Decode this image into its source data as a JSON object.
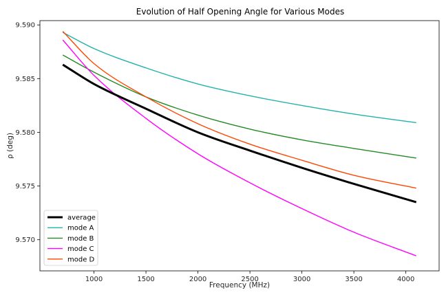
{
  "chart_data": {
    "type": "line",
    "title": "Evolution of Half Opening Angle for Various Modes",
    "xlabel": "Frequency (MHz)",
    "ylabel": "ρ (deg)",
    "xlim": [
      480,
      4320
    ],
    "ylim": [
      9.5671,
      9.5904
    ],
    "xticks": [
      1000,
      1500,
      2000,
      2500,
      3000,
      3500,
      4000
    ],
    "xtick_labels": [
      "1000",
      "1500",
      "2000",
      "2500",
      "3000",
      "3500",
      "4000"
    ],
    "yticks": [
      9.57,
      9.575,
      9.58,
      9.585,
      9.59
    ],
    "ytick_labels": [
      "9.570",
      "9.575",
      "9.580",
      "9.585",
      "9.590"
    ],
    "grid": false,
    "legend_position": "lower-left",
    "x": [
      700,
      1000,
      1500,
      2000,
      2500,
      3000,
      3500,
      4100
    ],
    "series": [
      {
        "name": "average",
        "color": "#000000",
        "width": 3,
        "values": [
          9.5863,
          9.5845,
          9.5822,
          9.58,
          9.5783,
          9.5767,
          9.5752,
          9.5735
        ]
      },
      {
        "name": "mode A",
        "color": "#20b2aa",
        "width": 1.4,
        "values": [
          9.5893,
          9.5878,
          9.586,
          9.5845,
          9.5834,
          9.5825,
          9.5817,
          9.5809
        ]
      },
      {
        "name": "mode B",
        "color": "#228b22",
        "width": 1.4,
        "values": [
          9.5872,
          9.5856,
          9.5833,
          9.5816,
          9.5803,
          9.5793,
          9.5785,
          9.5776
        ]
      },
      {
        "name": "mode C",
        "color": "#ff00ff",
        "width": 1.4,
        "values": [
          9.5886,
          9.5853,
          9.5813,
          9.578,
          9.5753,
          9.5729,
          9.5707,
          9.5685
        ]
      },
      {
        "name": "mode D",
        "color": "#ff4500",
        "width": 1.4,
        "values": [
          9.5894,
          9.5864,
          9.5833,
          9.5808,
          9.5789,
          9.5774,
          9.576,
          9.5748
        ]
      }
    ]
  }
}
